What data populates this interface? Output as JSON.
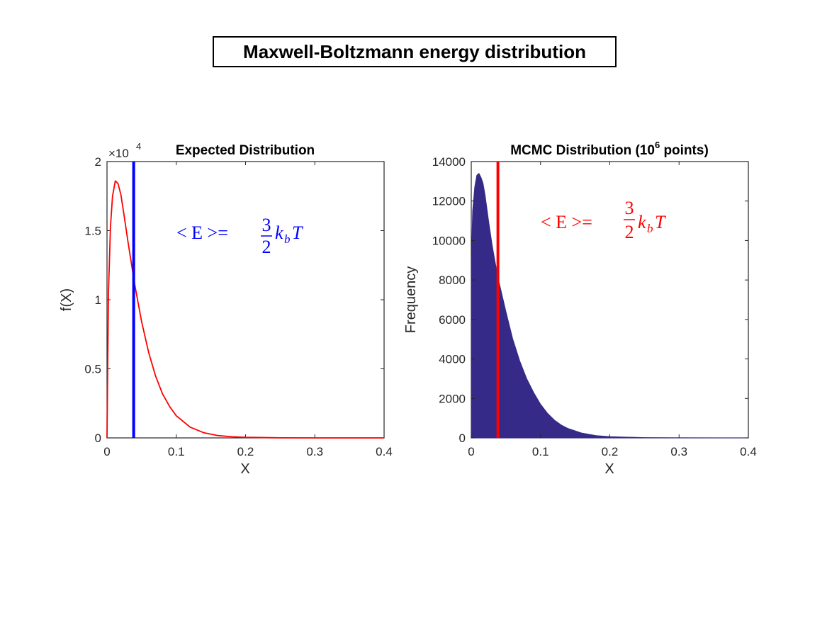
{
  "figure": {
    "title": "Maxwell-Boltzmann energy distribution"
  },
  "colors": {
    "expected_curve": "#ff0000",
    "expected_mean_line": "#0000ff",
    "histogram_fill": "#352a87",
    "histogram_mean_line": "#ff0000",
    "axes": "#262626"
  },
  "annotations": {
    "left": {
      "lhs": "< E >=",
      "num": "3",
      "den": "2",
      "k": "k",
      "sub": "b",
      "T": "T"
    },
    "right": {
      "lhs": "< E >=",
      "num": "3",
      "den": "2",
      "k": "k",
      "sub": "b",
      "T": "T"
    }
  },
  "chart_data": [
    {
      "type": "line",
      "title": "Expected Distribution",
      "xlabel": "X",
      "ylabel": "f(X)",
      "xlim": [
        0,
        0.4
      ],
      "ylim": [
        0,
        20000
      ],
      "x_ticks": [
        "0",
        "0.1",
        "0.2",
        "0.3",
        "0.4"
      ],
      "y_ticks": [
        "0",
        "0.5",
        "1",
        "1.5",
        "2"
      ],
      "y_exponent_base": "×10",
      "y_exponent_power": "4",
      "series": [
        {
          "x": [
            0,
            0.002,
            0.005,
            0.008,
            0.012,
            0.016,
            0.02,
            0.025,
            0.03,
            0.035,
            0.04,
            0.05,
            0.06,
            0.07,
            0.08,
            0.09,
            0.1,
            0.12,
            0.14,
            0.16,
            0.18,
            0.2,
            0.25,
            0.3,
            0.35,
            0.4
          ],
          "y": [
            0,
            10400,
            15300,
            17500,
            18600,
            18400,
            17600,
            16000,
            14300,
            12700,
            11100,
            8400,
            6200,
            4500,
            3200,
            2300,
            1600,
            780,
            370,
            170,
            80,
            40,
            5,
            0,
            0,
            0
          ]
        }
      ],
      "mean_x": 0.0385
    },
    {
      "type": "bar",
      "title_main": "MCMC Distribution (10",
      "title_sup": "6",
      "title_end": " points)",
      "xlabel": "X",
      "ylabel": "Frequency",
      "xlim": [
        0,
        0.4
      ],
      "ylim": [
        0,
        14000
      ],
      "x_ticks": [
        "0",
        "0.1",
        "0.2",
        "0.3",
        "0.4"
      ],
      "y_ticks": [
        "0",
        "2000",
        "4000",
        "6000",
        "8000",
        "10000",
        "12000",
        "14000"
      ],
      "histogram": {
        "x": [
          0,
          0.002,
          0.005,
          0.008,
          0.011,
          0.014,
          0.017,
          0.02,
          0.025,
          0.03,
          0.035,
          0.04,
          0.05,
          0.06,
          0.07,
          0.08,
          0.09,
          0.1,
          0.11,
          0.12,
          0.13,
          0.14,
          0.16,
          0.18,
          0.2,
          0.25,
          0.3,
          0.36,
          0.4
        ],
        "y": [
          8700,
          11500,
          12700,
          13300,
          13400,
          13200,
          12900,
          12300,
          11000,
          9800,
          8800,
          7900,
          6400,
          5000,
          3900,
          3000,
          2300,
          1700,
          1250,
          900,
          650,
          470,
          240,
          120,
          60,
          15,
          5,
          0,
          0
        ]
      },
      "mean_x": 0.0385
    }
  ]
}
